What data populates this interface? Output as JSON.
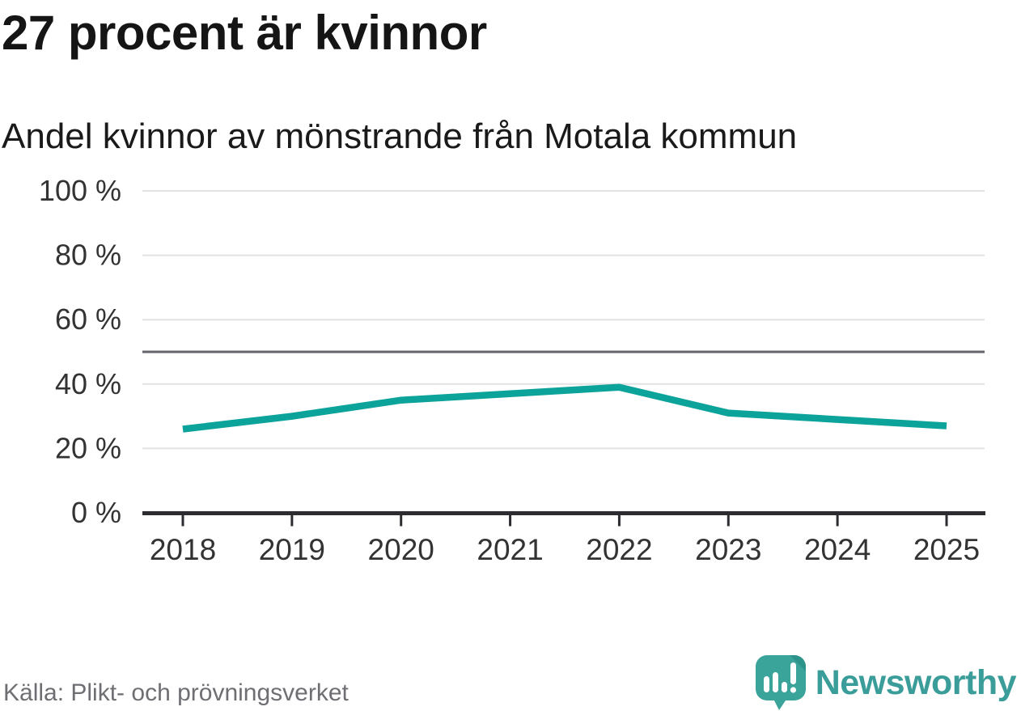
{
  "header": {
    "title": "27 procent är kvinnor",
    "subtitle": "Andel kvinnor av mönstrande från Motala kommun"
  },
  "footer": {
    "source": "Källa: Plikt- och prövningsverket",
    "brand": "Newsworthy"
  },
  "colors": {
    "line": "#0ca39a",
    "grid": "#e2e2e4",
    "reference_line": "#64646b",
    "axis": "#2d2d31",
    "tick_text": "#333333",
    "logo_teal": "#3aa39a",
    "wordmark_teal": "#3b9d99"
  },
  "chart_data": {
    "type": "line",
    "title": "27 procent är kvinnor",
    "subtitle": "Andel kvinnor av mönstrande från Motala kommun",
    "x": [
      2018,
      2019,
      2020,
      2021,
      2022,
      2023,
      2024,
      2025
    ],
    "x_labels": [
      "2018",
      "2019",
      "2020",
      "2021",
      "2022",
      "2023",
      "2024",
      "2025"
    ],
    "series": [
      {
        "name": "Andel kvinnor av mönstrande från Motala kommun",
        "values": [
          26,
          30,
          35,
          37,
          39,
          31,
          29,
          27
        ]
      }
    ],
    "unit": "%",
    "ylim": [
      0,
      100
    ],
    "yticks": [
      0,
      20,
      40,
      60,
      80,
      100
    ],
    "ytick_labels": [
      "0 %",
      "20 %",
      "40 %",
      "60 %",
      "80 %",
      "100 %"
    ],
    "reference_line_y": 50,
    "grid": "horizontal",
    "legend": "none"
  }
}
